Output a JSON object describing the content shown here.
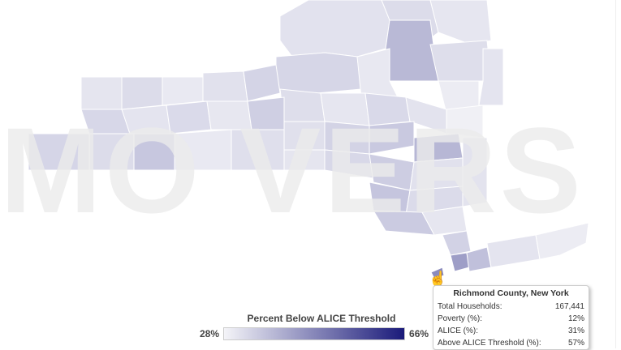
{
  "watermark": "MO VERS",
  "legend": {
    "title": "Percent Below ALICE Threshold",
    "min_label": "28%",
    "max_label": "66%",
    "min_color": "#f4f4f8",
    "max_color": "#1a1a7a"
  },
  "tooltip": {
    "title": "Richmond County, New York",
    "rows": [
      {
        "label": "Total Households:",
        "value": "167,441"
      },
      {
        "label": "Poverty (%):",
        "value": "12%"
      },
      {
        "label": "ALICE (%):",
        "value": "31%"
      },
      {
        "label": "Above ALICE Threshold (%):",
        "value": "57%"
      }
    ]
  },
  "icons": {
    "cursor": "hand-pointer-icon"
  }
}
